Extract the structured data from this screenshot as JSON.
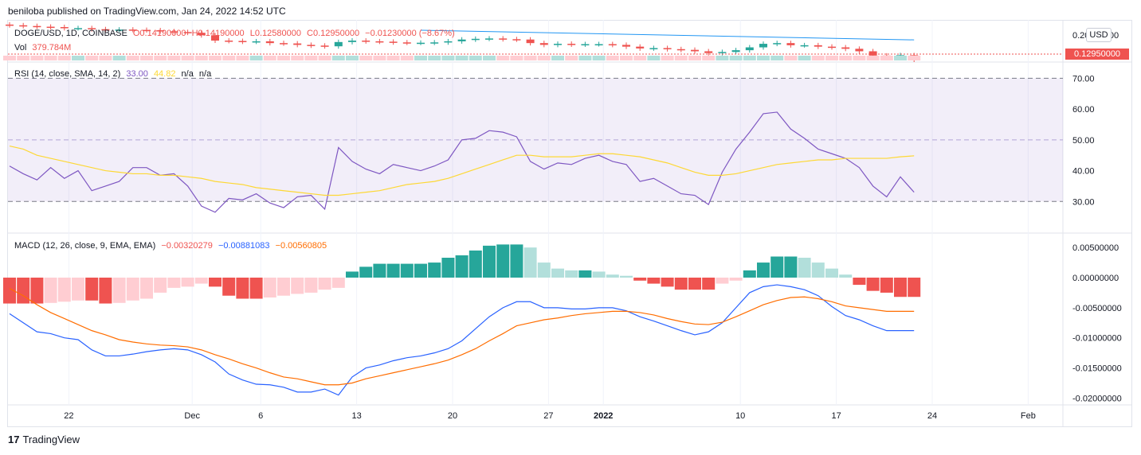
{
  "header": "beniloba published on TradingView.com, Jan 24, 2022 14:52 UTC",
  "footer_brand": "TradingView",
  "footer_logo": "17",
  "usd_label": "USD",
  "price_tag": "0.12950000",
  "main_legend": {
    "symbol": "DOGE/USD, 1D, COINBASE",
    "open": "O0.14190000",
    "high": "H0.14190000",
    "low": "L0.12580000",
    "close": "C0.12950000",
    "change": "−0.01230000 (−8.67%)",
    "vol_label": "Vol",
    "vol_value": "379.784M"
  },
  "rsi_legend": {
    "label": "RSI (14, close, SMA, 14, 2)",
    "rsi": "33.00",
    "sma": "44.82",
    "na1": "n/a",
    "na2": "n/a"
  },
  "macd_legend": {
    "label": "MACD (12, 26, close, 9, EMA, EMA)",
    "hist": "−0.00320279",
    "macd": "−0.00881083",
    "signal": "−0.00560805"
  },
  "colors": {
    "up": "#26a69a",
    "down": "#ef5350",
    "up_light": "#b2dfdb",
    "down_light": "#ffcdd2",
    "rsi": "#7e57c2",
    "rsi_sma": "#fdd835",
    "macd": "#2962ff",
    "signal": "#ff6d00",
    "trend": "#2196f3"
  },
  "chart_data": [
    {
      "type": "line",
      "title": "RSI (14, close, SMA, 14, 2)",
      "x": [
        0,
        1,
        2,
        3,
        4,
        5,
        6,
        7,
        8,
        9,
        10,
        11,
        12,
        13,
        14,
        15,
        16,
        17,
        18,
        19,
        20,
        21,
        22,
        23,
        24,
        25,
        26,
        27,
        28,
        29,
        30,
        31,
        32,
        33,
        34,
        35,
        36,
        37,
        38,
        39,
        40,
        41,
        42,
        43,
        44,
        45,
        46,
        47,
        48,
        49,
        50,
        51,
        52,
        53,
        54,
        55,
        56,
        57,
        58,
        59,
        60,
        61,
        62,
        63,
        64,
        65,
        66
      ],
      "x_tick_labels": [
        {
          "i": 2,
          "t": "22"
        },
        {
          "i": 11,
          "t": "Dec"
        },
        {
          "i": 16,
          "t": "6"
        },
        {
          "i": 23,
          "t": "13"
        },
        {
          "i": 30,
          "t": "20"
        },
        {
          "i": 37,
          "t": "27"
        },
        {
          "i": 41,
          "t": "2022"
        },
        {
          "i": 51,
          "t": "10"
        },
        {
          "i": 58,
          "t": "17"
        },
        {
          "i": 65,
          "t": "24"
        },
        {
          "i": 72,
          "t": "Feb"
        }
      ],
      "series": [
        {
          "name": "RSI",
          "values": [
            41.5,
            39,
            37,
            41,
            37.5,
            40,
            33.5,
            35,
            36.5,
            41,
            41,
            38.5,
            39,
            35,
            28.5,
            26.5,
            31,
            30.5,
            32.5,
            29.5,
            28,
            31.5,
            32,
            27.5,
            47.5,
            43,
            40.5,
            39,
            42,
            41,
            40,
            41.5,
            43.5,
            50,
            50.5,
            53,
            52.5,
            51,
            43,
            40.5,
            42.5,
            42,
            44,
            45,
            43,
            42,
            36.5,
            37.5,
            35,
            32.5,
            32,
            29,
            39.5,
            47,
            52.5,
            58.5,
            59,
            53.5,
            50.5,
            47,
            45.5,
            44,
            41,
            35,
            31.5,
            38,
            33
          ]
        },
        {
          "name": "SMA",
          "values": [
            48,
            47,
            45,
            44,
            43,
            42,
            41,
            40,
            39.5,
            39,
            39,
            38.5,
            38.5,
            38,
            37.5,
            36.5,
            36,
            35.5,
            34.5,
            34,
            33.5,
            33,
            32.5,
            32,
            32,
            32.5,
            33,
            33.5,
            34.5,
            35.5,
            36,
            36.5,
            37.5,
            39,
            40.5,
            42,
            43.5,
            45,
            45,
            44.5,
            44.5,
            44.5,
            45,
            45.5,
            45.5,
            45,
            44.5,
            43.5,
            42.5,
            41,
            39.5,
            38.5,
            38.5,
            39,
            40,
            41,
            42,
            42.5,
            43,
            43.5,
            43.5,
            44,
            44,
            44,
            44,
            44.5,
            44.82
          ]
        }
      ],
      "levels": [
        70,
        50,
        30
      ],
      "ylim": [
        20,
        75
      ],
      "y_ticks": [
        "70.00",
        "60.00",
        "50.00",
        "40.00",
        "30.00"
      ]
    },
    {
      "type": "bar",
      "title": "MACD (12, 26, close, 9, EMA, EMA)",
      "series": [
        {
          "name": "Histogram",
          "values": [
            -0.0043,
            -0.0043,
            -0.0043,
            -0.0042,
            -0.004,
            -0.0038,
            -0.0038,
            -0.0043,
            -0.0042,
            -0.0038,
            -0.0035,
            -0.0025,
            -0.0017,
            -0.0015,
            -0.001,
            -0.0015,
            -0.003,
            -0.0035,
            -0.0035,
            -0.0033,
            -0.003,
            -0.0027,
            -0.0025,
            -0.002,
            -0.0017,
            0.001,
            0.0018,
            0.0023,
            0.0023,
            0.0023,
            0.0023,
            0.0025,
            0.0033,
            0.0037,
            0.0045,
            0.0053,
            0.0055,
            0.0055,
            0.005,
            0.0025,
            0.0015,
            0.0012,
            0.0012,
            0.001,
            0.0005,
            0.0003,
            -0.0005,
            -0.001,
            -0.0015,
            -0.002,
            -0.002,
            -0.002,
            -0.001,
            -0.0005,
            0.0012,
            0.0025,
            0.0035,
            0.0035,
            0.0033,
            0.0025,
            0.0015,
            0.0005,
            -0.0012,
            -0.0022,
            -0.0025,
            -0.0032,
            -0.0032
          ]
        },
        {
          "name": "MACD",
          "values": [
            -0.006,
            -0.0075,
            -0.009,
            -0.0093,
            -0.01,
            -0.0103,
            -0.012,
            -0.013,
            -0.013,
            -0.0127,
            -0.0123,
            -0.012,
            -0.0118,
            -0.012,
            -0.0128,
            -0.014,
            -0.016,
            -0.017,
            -0.0177,
            -0.0178,
            -0.0182,
            -0.019,
            -0.019,
            -0.0185,
            -0.0195,
            -0.0165,
            -0.015,
            -0.0145,
            -0.0138,
            -0.0133,
            -0.013,
            -0.0125,
            -0.0118,
            -0.0105,
            -0.0085,
            -0.0065,
            -0.005,
            -0.004,
            -0.004,
            -0.005,
            -0.005,
            -0.0052,
            -0.0052,
            -0.005,
            -0.005,
            -0.0055,
            -0.0065,
            -0.0072,
            -0.008,
            -0.0088,
            -0.0095,
            -0.009,
            -0.0075,
            -0.005,
            -0.0025,
            -0.0015,
            -0.0012,
            -0.0015,
            -0.002,
            -0.003,
            -0.0048,
            -0.0063,
            -0.007,
            -0.008,
            -0.0088,
            -0.0088,
            -0.0088
          ]
        },
        {
          "name": "Signal",
          "values": [
            -0.0018,
            -0.003,
            -0.0045,
            -0.0058,
            -0.0068,
            -0.0078,
            -0.0088,
            -0.0095,
            -0.0103,
            -0.0107,
            -0.011,
            -0.0112,
            -0.0113,
            -0.0115,
            -0.012,
            -0.0128,
            -0.0135,
            -0.0143,
            -0.015,
            -0.0158,
            -0.0165,
            -0.0168,
            -0.0173,
            -0.0178,
            -0.0178,
            -0.0175,
            -0.0168,
            -0.0163,
            -0.0158,
            -0.0153,
            -0.0148,
            -0.0143,
            -0.0137,
            -0.0128,
            -0.0118,
            -0.0105,
            -0.0093,
            -0.008,
            -0.0075,
            -0.007,
            -0.0067,
            -0.0063,
            -0.006,
            -0.0058,
            -0.0056,
            -0.0056,
            -0.0058,
            -0.0062,
            -0.0068,
            -0.0073,
            -0.0077,
            -0.0078,
            -0.0074,
            -0.0065,
            -0.0055,
            -0.0045,
            -0.0038,
            -0.0033,
            -0.0032,
            -0.0035,
            -0.004,
            -0.0047,
            -0.005,
            -0.0053,
            -0.0056,
            -0.0056,
            -0.0056
          ]
        }
      ],
      "ylim": [
        -0.021,
        0.007
      ],
      "y_ticks": [
        "0.00500000",
        "0.00000000",
        "-0.00500000",
        "-0.01000000",
        "-0.01500000",
        "-0.02000000"
      ]
    },
    {
      "type": "bar",
      "title": "DOGE/USD, 1D, COINBASE",
      "series": [
        {
          "name": "Close",
          "values": [
            0.226,
            0.224,
            0.222,
            0.221,
            0.218,
            0.218,
            0.215,
            0.214,
            0.214,
            0.213,
            0.212,
            0.209,
            0.207,
            0.205,
            0.198,
            0.183,
            0.182,
            0.18,
            0.181,
            0.176,
            0.175,
            0.171,
            0.169,
            0.167,
            0.179,
            0.183,
            0.181,
            0.18,
            0.178,
            0.177,
            0.177,
            0.178,
            0.181,
            0.186,
            0.188,
            0.189,
            0.187,
            0.186,
            0.176,
            0.171,
            0.174,
            0.172,
            0.173,
            0.173,
            0.171,
            0.166,
            0.161,
            0.162,
            0.159,
            0.157,
            0.153,
            0.148,
            0.151,
            0.156,
            0.164,
            0.174,
            0.176,
            0.17,
            0.17,
            0.166,
            0.164,
            0.16,
            0.153,
            0.141,
            0.139,
            0.142,
            0.1295
          ]
        }
      ],
      "y_ticks": [
        "0.20000000"
      ]
    }
  ]
}
